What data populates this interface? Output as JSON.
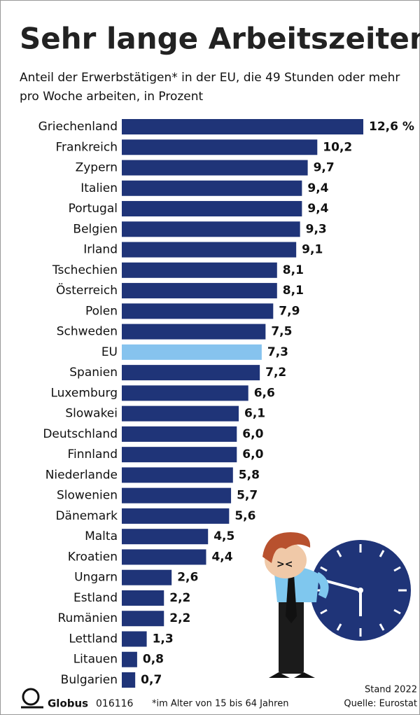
{
  "chart_data": {
    "type": "bar",
    "orientation": "horizontal",
    "title": "Sehr lange Arbeitszeiten",
    "subtitle": "Anteil der Erwerbstätigen* in der EU, die 49 Stunden oder mehr pro Woche arbeiten, in Prozent",
    "categories": [
      "Griechenland",
      "Frankreich",
      "Zypern",
      "Italien",
      "Portugal",
      "Belgien",
      "Irland",
      "Tschechien",
      "Österreich",
      "Polen",
      "Schweden",
      "EU",
      "Spanien",
      "Luxemburg",
      "Slowakei",
      "Deutschland",
      "Finnland",
      "Niederlande",
      "Slowenien",
      "Dänemark",
      "Malta",
      "Kroatien",
      "Ungarn",
      "Estland",
      "Rumänien",
      "Lettland",
      "Litauen",
      "Bulgarien"
    ],
    "values": [
      12.6,
      10.2,
      9.7,
      9.4,
      9.4,
      9.3,
      9.1,
      8.1,
      8.1,
      7.9,
      7.5,
      7.3,
      7.2,
      6.6,
      6.1,
      6.0,
      6.0,
      5.8,
      5.7,
      5.6,
      4.5,
      4.4,
      2.6,
      2.2,
      2.2,
      1.3,
      0.8,
      0.7
    ],
    "value_labels": [
      "12,6 %",
      "10,2",
      "9,7",
      "9,4",
      "9,4",
      "9,3",
      "9,1",
      "8,1",
      "8,1",
      "7,9",
      "7,5",
      "7,3",
      "7,2",
      "6,6",
      "6,1",
      "6,0",
      "6,0",
      "5,8",
      "5,7",
      "5,6",
      "4,5",
      "4,4",
      "2,6",
      "2,2",
      "2,2",
      "1,3",
      "0,8",
      "0,7"
    ],
    "colors": [
      "#1f3478",
      "#1f3478",
      "#1f3478",
      "#1f3478",
      "#1f3478",
      "#1f3478",
      "#1f3478",
      "#1f3478",
      "#1f3478",
      "#1f3478",
      "#1f3478",
      "#86c3ee",
      "#1f3478",
      "#1f3478",
      "#1f3478",
      "#1f3478",
      "#1f3478",
      "#1f3478",
      "#1f3478",
      "#1f3478",
      "#1f3478",
      "#1f3478",
      "#1f3478",
      "#1f3478",
      "#1f3478",
      "#1f3478",
      "#1f3478",
      "#1f3478"
    ],
    "footnote": "*im Alter von 15 bis 64 Jahren",
    "source": "Quelle: Eurostat",
    "date": "Stand 2022",
    "publisher": "Globus",
    "code": "016116"
  }
}
